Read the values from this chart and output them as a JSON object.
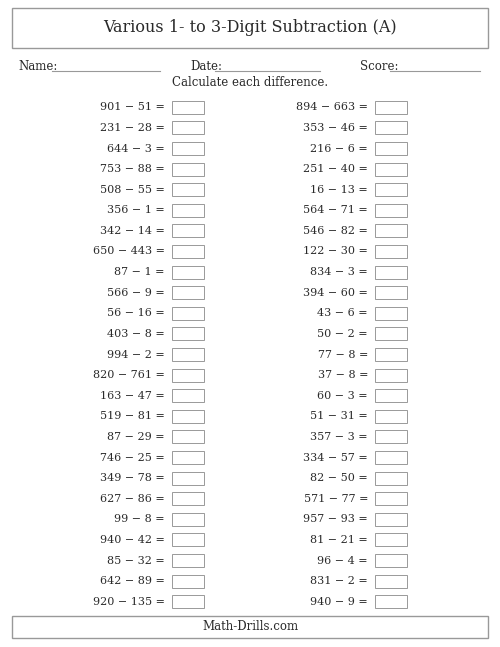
{
  "title": "Various 1- to 3-Digit Subtraction (A)",
  "subtitle": "Calculate each difference.",
  "footer": "Math-Drills.com",
  "name_label": "Name:",
  "date_label": "Date:",
  "score_label": "Score:",
  "left_problems": [
    "901 − 51 =",
    "231 − 28 =",
    "644 − 3 =",
    "753 − 88 =",
    "508 − 55 =",
    "356 − 1 =",
    "342 − 14 =",
    "650 − 443 =",
    "87 − 1 =",
    "566 − 9 =",
    "56 − 16 =",
    "403 − 8 =",
    "994 − 2 =",
    "820 − 761 =",
    "163 − 47 =",
    "519 − 81 =",
    "87 − 29 =",
    "746 − 25 =",
    "349 − 78 =",
    "627 − 86 =",
    "99 − 8 =",
    "940 − 42 =",
    "85 − 32 =",
    "642 − 89 =",
    "920 − 135 ="
  ],
  "right_problems": [
    "894 − 663 =",
    "353 − 46 =",
    "216 − 6 =",
    "251 − 40 =",
    "16 − 13 =",
    "564 − 71 =",
    "546 − 82 =",
    "122 − 30 =",
    "834 − 3 =",
    "394 − 60 =",
    "43 − 6 =",
    "50 − 2 =",
    "77 − 8 =",
    "37 − 8 =",
    "60 − 3 =",
    "51 − 31 =",
    "357 − 3 =",
    "334 − 57 =",
    "82 − 50 =",
    "571 − 77 =",
    "957 − 93 =",
    "81 − 21 =",
    "96 − 4 =",
    "831 − 2 =",
    "940 − 9 ="
  ],
  "bg_color": "#ffffff",
  "text_color": "#2a2a2a",
  "border_color": "#999999",
  "fig_width": 5.0,
  "fig_height": 6.47,
  "dpi": 100
}
